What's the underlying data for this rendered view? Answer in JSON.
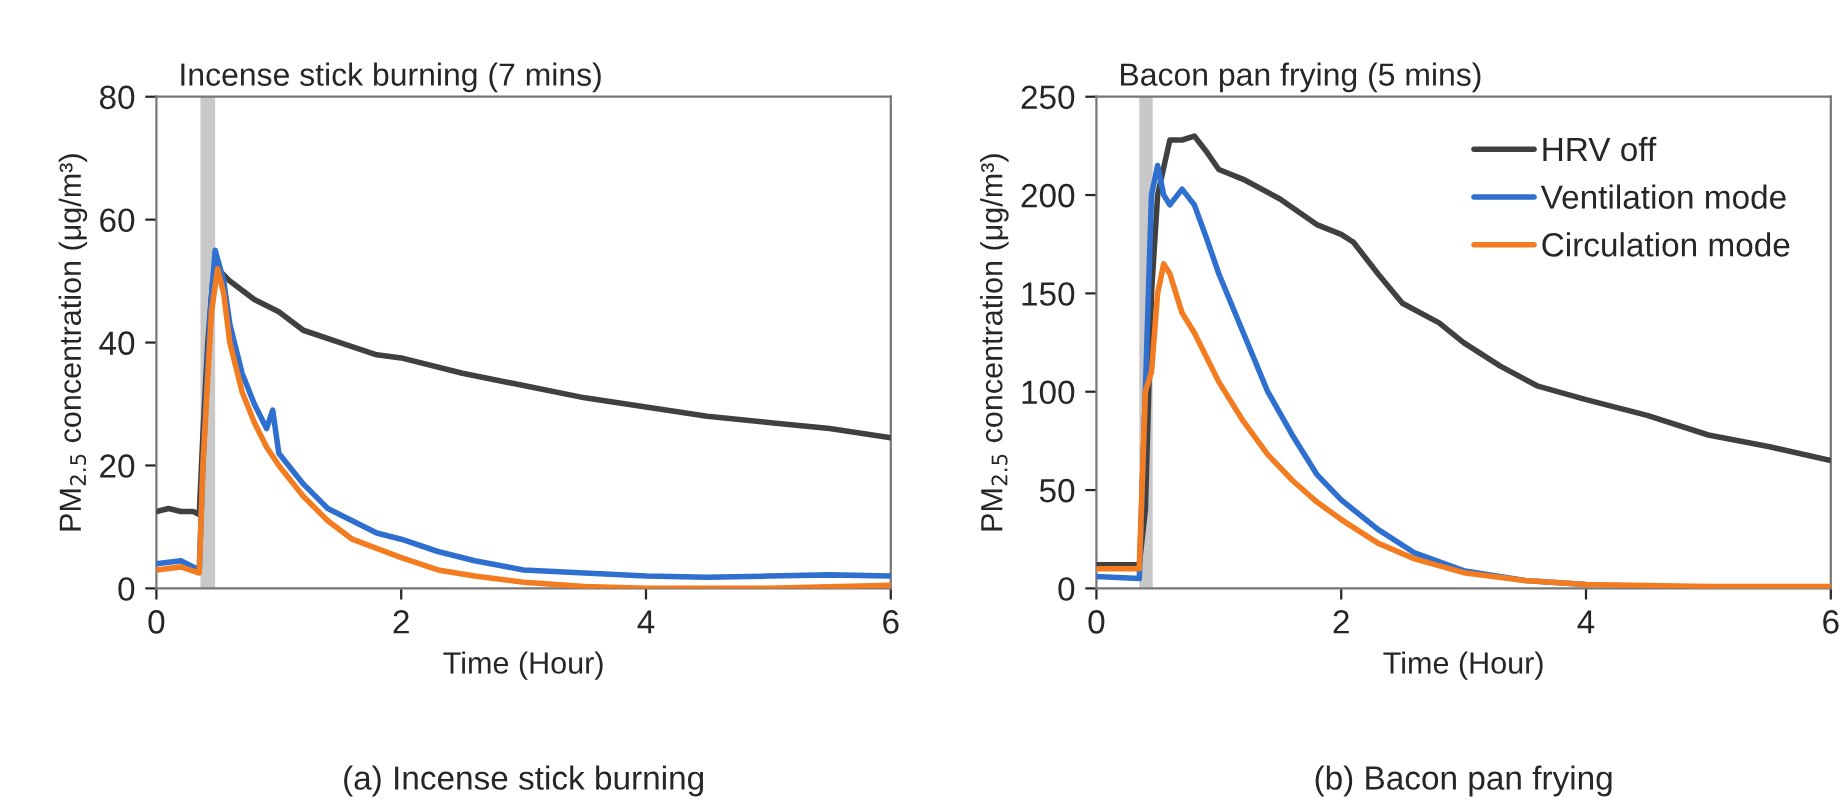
{
  "chart_data": [
    {
      "type": "line",
      "title": "Incense stick burning (7 mins)",
      "xlabel": "Time (Hour)",
      "ylabel": "PM$_{2.5}$ concentration (μg/m³)",
      "xlim": [
        0,
        6
      ],
      "xticks": [
        0,
        2,
        4,
        6
      ],
      "ylim": [
        0,
        80
      ],
      "yticks": [
        0,
        20,
        40,
        60,
        80
      ],
      "grid": false,
      "bands": [
        {
          "axis": "x",
          "from": 0.36,
          "to": 0.48,
          "color": "#c8c8c8"
        }
      ],
      "annotations": [
        "(a) Incense stick burning"
      ],
      "series": [
        {
          "color": "#404040",
          "x": [
            0,
            0.1,
            0.2,
            0.3,
            0.35,
            0.38,
            0.42,
            0.46,
            0.5,
            0.6,
            0.8,
            1.0,
            1.2,
            1.5,
            1.8,
            2.0,
            2.5,
            3.0,
            3.5,
            4.0,
            4.5,
            5.0,
            5.5,
            6.0
          ],
          "values": [
            12.5,
            13,
            12.5,
            12.5,
            12,
            25,
            40,
            50,
            52,
            50,
            47,
            45,
            42,
            40,
            38,
            37.5,
            35,
            33,
            31,
            29.5,
            28,
            27,
            26,
            24.5
          ]
        },
        {
          "color": "#2e6fcf",
          "x": [
            0,
            0.2,
            0.35,
            0.38,
            0.44,
            0.48,
            0.55,
            0.6,
            0.7,
            0.8,
            0.9,
            0.95,
            1.0,
            1.2,
            1.4,
            1.6,
            1.8,
            2.0,
            2.3,
            2.6,
            3.0,
            3.5,
            4.0,
            4.5,
            5.0,
            5.5,
            6.0
          ],
          "values": [
            4,
            4.5,
            3,
            20,
            45,
            55,
            50,
            43,
            35,
            30,
            26,
            29,
            22,
            17,
            13,
            11,
            9,
            8,
            6,
            4.5,
            3,
            2.5,
            2,
            1.8,
            2,
            2.2,
            2
          ]
        },
        {
          "color": "#f47c20",
          "x": [
            0,
            0.2,
            0.35,
            0.38,
            0.45,
            0.5,
            0.55,
            0.6,
            0.7,
            0.8,
            0.9,
            1.0,
            1.2,
            1.4,
            1.6,
            1.8,
            2.0,
            2.3,
            2.6,
            3.0,
            3.5,
            4.0,
            5.0,
            6.0
          ],
          "values": [
            3,
            3.5,
            2.5,
            20,
            45,
            52,
            48,
            40,
            32,
            27,
            23,
            20,
            15,
            11,
            8,
            6.5,
            5,
            3,
            2,
            1,
            0.3,
            0,
            0,
            0.5
          ]
        }
      ]
    },
    {
      "type": "line",
      "title": "Bacon pan frying (5 mins)",
      "xlabel": "Time (Hour)",
      "ylabel": "PM$_{2.5}$ concentration (μg/m³)",
      "xlim": [
        0,
        6
      ],
      "xticks": [
        0,
        2,
        4,
        6
      ],
      "ylim": [
        0,
        250
      ],
      "yticks": [
        0,
        50,
        100,
        150,
        200,
        250
      ],
      "grid": false,
      "legend": "top right",
      "bands": [
        {
          "axis": "x",
          "from": 0.35,
          "to": 0.46,
          "color": "#c8c8c8"
        }
      ],
      "annotations": [
        "(b) Bacon pan frying"
      ],
      "series": [
        {
          "name": "HRV off",
          "color": "#404040",
          "x": [
            0,
            0.35,
            0.4,
            0.45,
            0.5,
            0.6,
            0.7,
            0.8,
            0.9,
            1.0,
            1.2,
            1.5,
            1.8,
            2.0,
            2.1,
            2.3,
            2.5,
            2.8,
            3.0,
            3.3,
            3.6,
            4.0,
            4.5,
            5.0,
            5.5,
            6.0
          ],
          "values": [
            12,
            12,
            40,
            150,
            200,
            228,
            228,
            230,
            222,
            213,
            208,
            198,
            185,
            180,
            176,
            160,
            145,
            135,
            125,
            113,
            103,
            96,
            88,
            78,
            72,
            65
          ]
        },
        {
          "name": "Ventilation mode",
          "color": "#2e6fcf",
          "x": [
            0,
            0.35,
            0.4,
            0.45,
            0.5,
            0.55,
            0.6,
            0.7,
            0.8,
            0.9,
            1.0,
            1.2,
            1.4,
            1.6,
            1.8,
            2.0,
            2.3,
            2.6,
            3.0,
            3.5,
            4.0
          ],
          "values": [
            6,
            5,
            100,
            200,
            215,
            200,
            195,
            203,
            195,
            178,
            160,
            130,
            100,
            78,
            58,
            45,
            30,
            18,
            9,
            4,
            2
          ]
        },
        {
          "name": "Circulation mode",
          "color": "#f47c20",
          "x": [
            0,
            0.35,
            0.4,
            0.45,
            0.5,
            0.55,
            0.6,
            0.7,
            0.8,
            1.0,
            1.2,
            1.4,
            1.6,
            1.8,
            2.0,
            2.3,
            2.6,
            3.0,
            3.5,
            4.0,
            5.0,
            6.0
          ],
          "values": [
            10,
            10,
            100,
            110,
            150,
            165,
            160,
            140,
            130,
            105,
            85,
            68,
            55,
            44,
            35,
            23,
            15,
            8,
            4,
            2,
            1,
            1
          ]
        }
      ]
    }
  ]
}
